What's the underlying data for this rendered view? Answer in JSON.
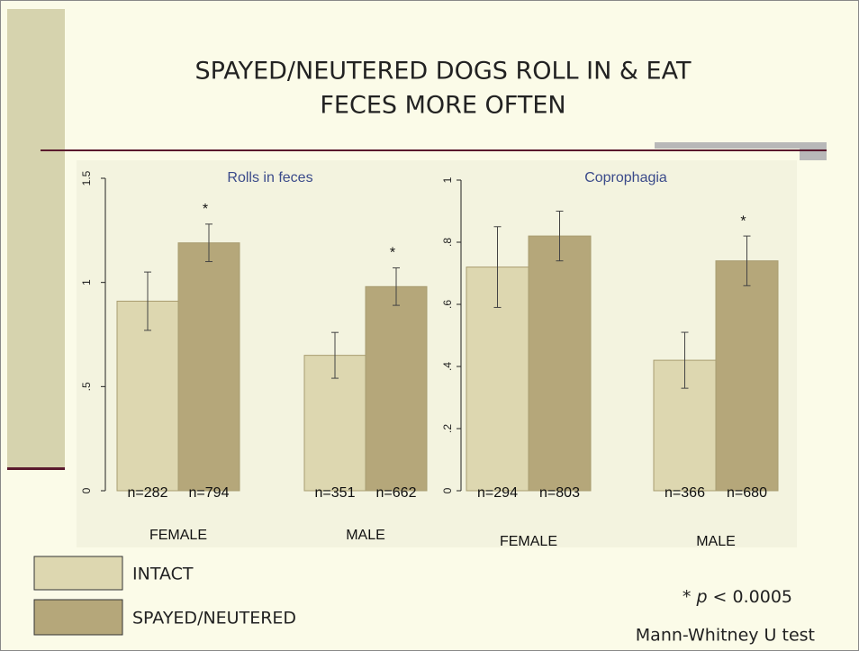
{
  "slide_title": [
    "SPAYED/NEUTERED DOGS ROLL IN & EAT",
    "FECES MORE OFTEN"
  ],
  "chart_data": [
    {
      "type": "bar",
      "title": "Rolls in feces",
      "categories": [
        "FEMALE",
        "MALE"
      ],
      "series": [
        {
          "name": "INTACT",
          "color": "#ddd7b0",
          "values": [
            0.91,
            0.65
          ],
          "errors": [
            0.14,
            0.11
          ],
          "n_labels": [
            "n=282",
            "n=351"
          ]
        },
        {
          "name": "SPAYED/NEUTERED",
          "color": "#b5a77a",
          "values": [
            1.19,
            0.98
          ],
          "errors": [
            0.09,
            0.09
          ],
          "n_labels": [
            "n=794",
            "n=662"
          ]
        }
      ],
      "significance": [
        "*",
        "*"
      ],
      "ylim": [
        0,
        1.5
      ],
      "yticks": [
        0,
        {
          "value": 0.5,
          "label": ".5"
        },
        1,
        {
          "value": 1.5,
          "label": "1.5"
        }
      ]
    },
    {
      "type": "bar",
      "title": "Coprophagia",
      "categories": [
        "FEMALE",
        "MALE"
      ],
      "series": [
        {
          "color": "#ddd7b0",
          "values": [
            0.72,
            0.42
          ],
          "errors": [
            0.13,
            0.09
          ],
          "n_labels": [
            "n=294",
            "n=366"
          ]
        },
        {
          "color": "#b5a77a",
          "values": [
            0.82,
            0.74
          ],
          "errors": [
            0.08,
            0.08
          ],
          "n_labels": [
            "n=803",
            "n=680"
          ]
        }
      ],
      "significance": [
        null,
        "*"
      ],
      "ylim": [
        0,
        1
      ],
      "yticks": [
        0,
        {
          "value": 0.2,
          "label": ".2"
        },
        {
          "value": 0.4,
          "label": ".4"
        },
        {
          "value": 0.6,
          "label": ".6"
        },
        {
          "value": 0.8,
          "label": ".8"
        },
        1
      ]
    }
  ],
  "footnote": {
    "prefix": "* ",
    "symbol": "p",
    "suffix": " < 0.0005"
  },
  "test_name": "Mann-Whitney U test"
}
